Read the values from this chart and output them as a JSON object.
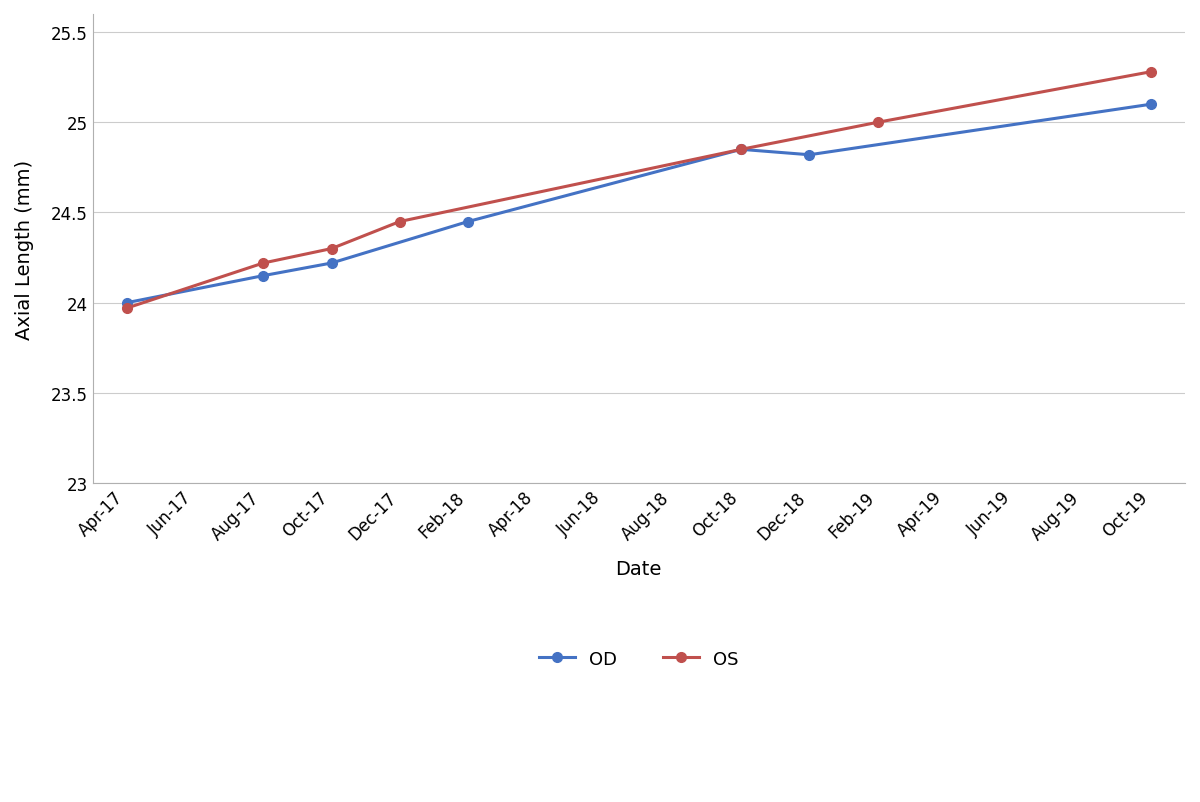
{
  "x_labels": [
    "Apr-17",
    "Jun-17",
    "Aug-17",
    "Oct-17",
    "Dec-17",
    "Feb-18",
    "Apr-18",
    "Jun-18",
    "Aug-18",
    "Oct-18",
    "Dec-18",
    "Feb-19",
    "Apr-19",
    "Jun-19",
    "Aug-19",
    "Oct-19"
  ],
  "od_x_indices": [
    0,
    2,
    3,
    5,
    9,
    10,
    15
  ],
  "od_values": [
    24.0,
    24.15,
    24.22,
    24.45,
    24.85,
    24.82,
    25.1
  ],
  "os_x_indices": [
    0,
    2,
    3,
    4,
    9,
    11,
    15
  ],
  "os_values": [
    23.97,
    24.22,
    24.3,
    24.45,
    24.85,
    25.0,
    25.28
  ],
  "od_color": "#4472C4",
  "os_color": "#C0504D",
  "ylabel": "Axial Length (mm)",
  "xlabel": "Date",
  "ylim_min": 23.0,
  "ylim_max": 25.6,
  "yticks": [
    23.0,
    23.5,
    24.0,
    24.5,
    25.0,
    25.5
  ],
  "legend_od": "OD",
  "legend_os": "OS",
  "marker": "o",
  "linewidth": 2.2,
  "markersize": 7,
  "tick_fontsize": 12,
  "label_fontsize": 14
}
